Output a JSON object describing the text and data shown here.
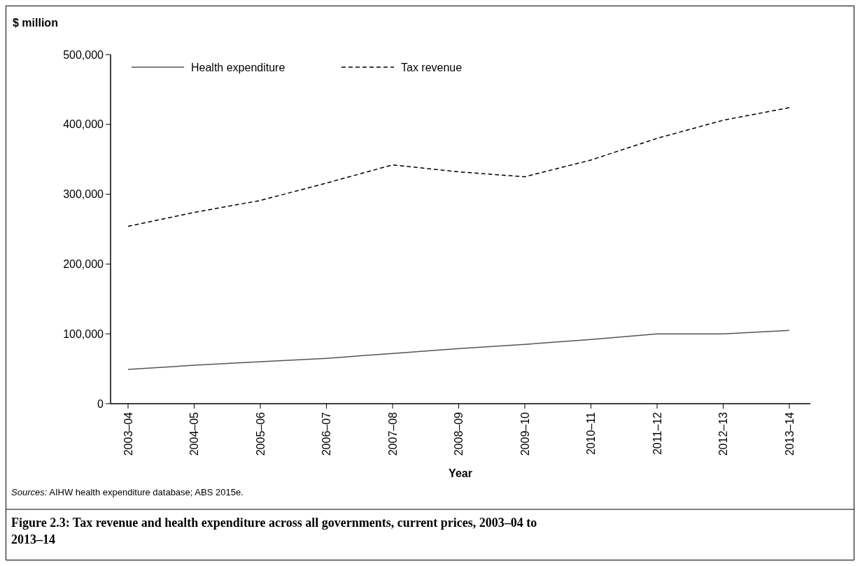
{
  "chart_data": {
    "type": "line",
    "title": "Figure 2.3: Tax revenue and health expenditure across all governments, current prices, 2003–04 to 2013–14",
    "ylabel": "$ million",
    "xlabel": "Year",
    "annotations": [
      "Sources: AIHW health expenditure database; ABS 2015e."
    ],
    "categories": [
      "2003–04",
      "2004–05",
      "2005–06",
      "2006–07",
      "2007–08",
      "2008–09",
      "2009–10",
      "2010–11",
      "2011–12",
      "2012–13",
      "2013–14"
    ],
    "series": [
      {
        "name": "Health expenditure",
        "color": "#555555",
        "line_style": "solid",
        "values": [
          49000,
          55000,
          60000,
          65000,
          72000,
          79000,
          85000,
          92000,
          100000,
          100000,
          105000
        ]
      },
      {
        "name": "Tax revenue",
        "color": "#000000",
        "line_style": "dashed",
        "values": [
          254000,
          274000,
          291000,
          316000,
          342000,
          332000,
          325000,
          349000,
          380000,
          406000,
          424000
        ]
      }
    ],
    "ylim": [
      0,
      500000
    ],
    "yticks": [
      {
        "value": 0,
        "label": "0"
      },
      {
        "value": 100000,
        "label": "100,000"
      },
      {
        "value": 200000,
        "label": "200,000"
      },
      {
        "value": 300000,
        "label": "300,000"
      },
      {
        "value": 400000,
        "label": "400,000"
      },
      {
        "value": 500000,
        "label": "500,000"
      }
    ],
    "grid": false,
    "legend": "top left"
  }
}
